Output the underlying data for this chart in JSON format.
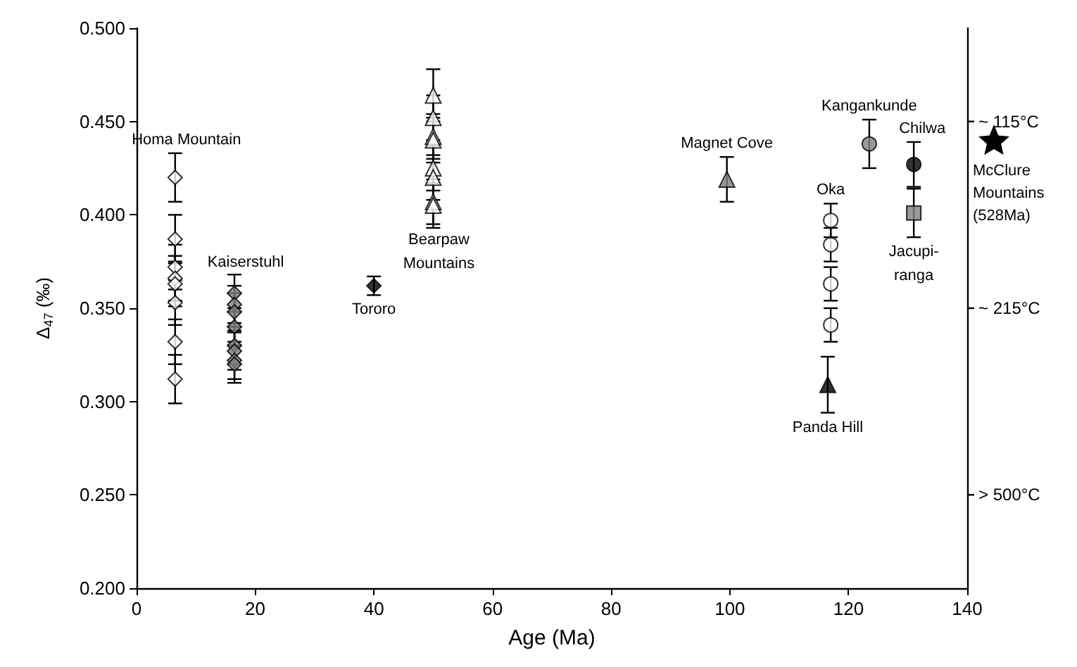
{
  "chart_data": {
    "type": "scatter",
    "xlabel": "Age (Ma)",
    "ylabel": "Δ$_{47}$ (‰)",
    "xlim": [
      0,
      140
    ],
    "xticks": [
      0,
      20,
      40,
      60,
      80,
      100,
      120,
      140
    ],
    "ylim": [
      0.2,
      0.5
    ],
    "yticks": [
      {
        "value": 0.2,
        "label": "0.200"
      },
      {
        "value": 0.25,
        "label": "0.250"
      },
      {
        "value": 0.3,
        "label": "0.300"
      },
      {
        "value": 0.35,
        "label": "0.350"
      },
      {
        "value": 0.4,
        "label": "0.400"
      },
      {
        "value": 0.45,
        "label": "0.450"
      },
      {
        "value": 0.5,
        "label": "0.500"
      }
    ],
    "grid": false,
    "legend": false,
    "series": [
      {
        "name": "Homa Mountain",
        "marker": "diamond",
        "color": "#ffffff",
        "x": [
          6.5,
          6.5,
          6.5,
          6.5,
          6.5,
          6.5,
          6.5,
          6.5
        ],
        "values": [
          0.42,
          0.387,
          0.372,
          0.366,
          0.363,
          0.353,
          0.332,
          0.312
        ],
        "errors": [
          0.013,
          0.013,
          0.012,
          0.012,
          0.012,
          0.012,
          0.012,
          0.013
        ]
      },
      {
        "name": "Kaiserstuhl",
        "marker": "diamond",
        "color": "#808080",
        "x": [
          16.5,
          16.5,
          16.5,
          16.5,
          16.5,
          16.5,
          16.5,
          16.5
        ],
        "values": [
          0.358,
          0.352,
          0.348,
          0.34,
          0.33,
          0.327,
          0.322,
          0.32
        ],
        "errors": [
          0.01,
          0.01,
          0.01,
          0.01,
          0.01,
          0.01,
          0.01,
          0.01
        ]
      },
      {
        "name": "Tororo",
        "marker": "diamond",
        "color": "#000000",
        "x": [
          40
        ],
        "values": [
          0.362
        ],
        "errors": [
          0.005
        ]
      },
      {
        "name": "Bearpaw Mountains",
        "marker": "triangle",
        "color": "#ffffff",
        "x": [
          50,
          50,
          50,
          50,
          50,
          50,
          50,
          50
        ],
        "values": [
          0.464,
          0.452,
          0.442,
          0.44,
          0.425,
          0.42,
          0.407,
          0.405
        ],
        "errors": [
          0.014,
          0.012,
          0.012,
          0.012,
          0.012,
          0.012,
          0.012,
          0.012
        ]
      },
      {
        "name": "Magnet Cove",
        "marker": "triangle",
        "color": "#808080",
        "x": [
          99.5
        ],
        "values": [
          0.419
        ],
        "errors": [
          0.012
        ]
      },
      {
        "name": "Oka",
        "marker": "circle",
        "color": "#ffffff",
        "x": [
          117,
          117,
          117,
          117
        ],
        "values": [
          0.397,
          0.384,
          0.363,
          0.341
        ],
        "errors": [
          0.009,
          0.009,
          0.009,
          0.009
        ]
      },
      {
        "name": "Panda Hill",
        "marker": "triangle",
        "color": "#000000",
        "x": [
          116.5
        ],
        "values": [
          0.309
        ],
        "errors": [
          0.015
        ]
      },
      {
        "name": "Kangankunde",
        "marker": "circle",
        "color": "#808080",
        "x": [
          123.5
        ],
        "values": [
          0.438
        ],
        "errors": [
          0.013
        ]
      },
      {
        "name": "Chilwa",
        "marker": "circle",
        "color": "#000000",
        "x": [
          131
        ],
        "values": [
          0.427
        ],
        "errors": [
          0.012
        ]
      },
      {
        "name": "Jacupi-ranga",
        "marker": "square",
        "color": "#808080",
        "x": [
          131
        ],
        "values": [
          0.401
        ],
        "errors": [
          0.013
        ]
      }
    ],
    "ref_lines": [
      {
        "axis": "y",
        "value": 0.45,
        "label": "~ 115°C"
      },
      {
        "axis": "y",
        "value": 0.35,
        "label": "~ 215°C"
      },
      {
        "axis": "y",
        "value": 0.25,
        "label": "> 500°C"
      }
    ],
    "annotations": [
      "McClure Mountains (528Ma)"
    ]
  }
}
